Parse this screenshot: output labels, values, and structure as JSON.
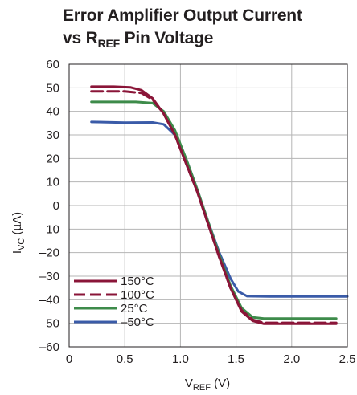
{
  "chart_data": {
    "type": "line",
    "title": {
      "line1": "Error Amplifier Output Current",
      "line2_prefix": "vs R",
      "line2_subscript": "REF",
      "line2_suffix": " Pin Voltage"
    },
    "xlabel": {
      "main": "V",
      "sub": "REF",
      "unit": " (V)"
    },
    "ylabel": {
      "main": "I",
      "sub": "VC",
      "unit": " (µA)"
    },
    "xlim": [
      0,
      2.5
    ],
    "ylim": [
      -60,
      60
    ],
    "x_ticks": [
      0,
      0.5,
      1.0,
      1.5,
      2.0,
      2.5
    ],
    "x_tick_labels": [
      "0",
      "0.5",
      "1.0",
      "1.5",
      "2.0",
      "2.5"
    ],
    "y_ticks": [
      60,
      50,
      40,
      30,
      20,
      10,
      0,
      -10,
      -20,
      -30,
      -40,
      -50,
      -60
    ],
    "y_tick_labels": [
      "60",
      "50",
      "40",
      "30",
      "20",
      "10",
      "0",
      "–10",
      "–20",
      "–30",
      "–40",
      "–50",
      "–60"
    ],
    "grid": true,
    "legend_position": "bottom-left",
    "series": [
      {
        "name": "150°C",
        "color": "#8a1538",
        "dash": "solid",
        "points": [
          [
            0.2,
            50.5
          ],
          [
            0.4,
            50.5
          ],
          [
            0.55,
            50.2
          ],
          [
            0.65,
            49.0
          ],
          [
            0.75,
            45.5
          ],
          [
            0.85,
            39.0
          ],
          [
            0.95,
            30.0
          ],
          [
            1.05,
            18.0
          ],
          [
            1.15,
            6.0
          ],
          [
            1.25,
            -8.0
          ],
          [
            1.35,
            -22.0
          ],
          [
            1.45,
            -35.0
          ],
          [
            1.55,
            -45.0
          ],
          [
            1.65,
            -49.0
          ],
          [
            1.75,
            -50.2
          ],
          [
            2.0,
            -50.2
          ],
          [
            2.4,
            -50.2
          ]
        ]
      },
      {
        "name": "100°C",
        "color": "#8a1538",
        "dash": "dashed",
        "points": [
          [
            0.2,
            48.5
          ],
          [
            0.5,
            48.5
          ],
          [
            0.65,
            47.8
          ],
          [
            0.75,
            45.0
          ],
          [
            0.85,
            39.0
          ],
          [
            0.95,
            30.0
          ],
          [
            1.05,
            18.0
          ],
          [
            1.15,
            6.0
          ],
          [
            1.25,
            -8.0
          ],
          [
            1.35,
            -22.0
          ],
          [
            1.45,
            -35.0
          ],
          [
            1.55,
            -44.5
          ],
          [
            1.65,
            -48.5
          ],
          [
            1.75,
            -49.8
          ],
          [
            2.0,
            -49.8
          ],
          [
            2.4,
            -49.8
          ]
        ]
      },
      {
        "name": "25°C",
        "color": "#3d8b4a",
        "dash": "solid",
        "points": [
          [
            0.2,
            44.0
          ],
          [
            0.6,
            44.0
          ],
          [
            0.75,
            43.5
          ],
          [
            0.85,
            40.0
          ],
          [
            0.95,
            32.0
          ],
          [
            1.05,
            20.0
          ],
          [
            1.15,
            7.0
          ],
          [
            1.25,
            -7.0
          ],
          [
            1.35,
            -21.0
          ],
          [
            1.45,
            -34.0
          ],
          [
            1.55,
            -43.5
          ],
          [
            1.65,
            -47.5
          ],
          [
            1.75,
            -48.0
          ],
          [
            2.0,
            -48.0
          ],
          [
            2.4,
            -48.0
          ]
        ]
      },
      {
        "name": "–50°C",
        "color": "#3a5ba8",
        "dash": "solid",
        "points": [
          [
            0.2,
            35.5
          ],
          [
            0.5,
            35.2
          ],
          [
            0.75,
            35.3
          ],
          [
            0.85,
            34.5
          ],
          [
            0.95,
            30.0
          ],
          [
            1.05,
            20.0
          ],
          [
            1.15,
            7.0
          ],
          [
            1.25,
            -7.0
          ],
          [
            1.35,
            -20.0
          ],
          [
            1.45,
            -31.0
          ],
          [
            1.52,
            -36.5
          ],
          [
            1.6,
            -38.5
          ],
          [
            1.8,
            -38.6
          ],
          [
            2.1,
            -38.6
          ],
          [
            2.5,
            -38.6
          ]
        ]
      }
    ]
  }
}
